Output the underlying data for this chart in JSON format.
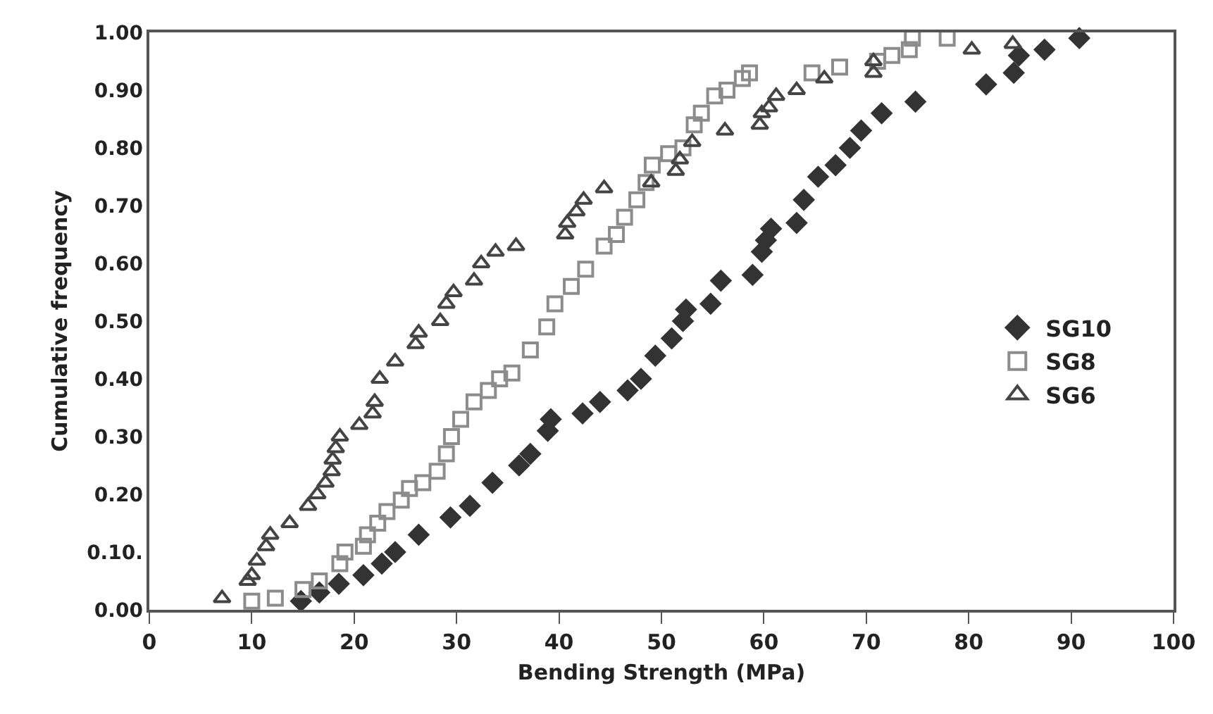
{
  "chart_data": {
    "type": "scatter",
    "xlabel": "Bending Strength (MPa)",
    "ylabel": "Cumulative frequency",
    "xlim": [
      0,
      100
    ],
    "xticks": [
      0,
      10,
      20,
      30,
      40,
      50,
      60,
      70,
      80,
      90,
      100
    ],
    "ylim": [
      0,
      1
    ],
    "yticks": [
      {
        "value": 0,
        "label": "0.00"
      },
      {
        "value": 0.1,
        "label": "0.10."
      },
      {
        "value": 0.2,
        "label": "0.20"
      },
      {
        "value": 0.3,
        "label": "0.30"
      },
      {
        "value": 0.4,
        "label": "0.40"
      },
      {
        "value": 0.5,
        "label": "0.50"
      },
      {
        "value": 0.6,
        "label": "0.60"
      },
      {
        "value": 0.7,
        "label": "0.70"
      },
      {
        "value": 0.8,
        "label": "0.80"
      },
      {
        "value": 0.9,
        "label": "0.90"
      },
      {
        "value": 1,
        "label": "1.00"
      }
    ],
    "legend": "right",
    "series": [
      {
        "name": "SG10",
        "color": "#333333",
        "marker": "diamond",
        "x": [
          14.8,
          16.6,
          18.5,
          20.9,
          22.7,
          24,
          26.3,
          29.4,
          31.3,
          33.5,
          36.1,
          37.2,
          38.9,
          39.2,
          42.3,
          44,
          46.7,
          48,
          49.4,
          51,
          52.1,
          52.4,
          54.8,
          55.8,
          58.9,
          59.8,
          60.2,
          60.7,
          63.2,
          63.9,
          65.3,
          67,
          68.4,
          69.5,
          71.5,
          74.8,
          81.7,
          84.4,
          84.9,
          87.4,
          90.8
        ],
        "values": [
          0.015,
          0.03,
          0.045,
          0.06,
          0.08,
          0.1,
          0.13,
          0.16,
          0.18,
          0.22,
          0.25,
          0.27,
          0.31,
          0.33,
          0.34,
          0.36,
          0.38,
          0.4,
          0.44,
          0.47,
          0.5,
          0.52,
          0.53,
          0.57,
          0.58,
          0.62,
          0.64,
          0.66,
          0.67,
          0.71,
          0.75,
          0.77,
          0.8,
          0.83,
          0.86,
          0.88,
          0.91,
          0.93,
          0.96,
          0.97,
          0.99
        ]
      },
      {
        "name": "SG8",
        "color": "#8c8c8c",
        "marker": "square",
        "x": [
          10,
          12.3,
          15,
          16.6,
          18.6,
          19.1,
          20.9,
          21.3,
          22.3,
          23.2,
          24.6,
          25.4,
          26.7,
          28.1,
          29,
          29.5,
          30.4,
          31.7,
          33.1,
          34.2,
          35.4,
          37.2,
          38.8,
          39.6,
          41.2,
          42.6,
          44.4,
          45.6,
          46.4,
          47.6,
          48.5,
          49.1,
          50.7,
          52.1,
          53.2,
          53.9,
          55.2,
          56.4,
          57.9,
          58.6,
          64.7,
          67.4,
          71.1,
          72.5,
          74.2,
          74.5,
          77.9
        ],
        "values": [
          0.015,
          0.02,
          0.035,
          0.05,
          0.08,
          0.1,
          0.11,
          0.13,
          0.15,
          0.17,
          0.19,
          0.21,
          0.22,
          0.24,
          0.27,
          0.3,
          0.33,
          0.36,
          0.38,
          0.4,
          0.41,
          0.45,
          0.49,
          0.53,
          0.56,
          0.59,
          0.63,
          0.65,
          0.68,
          0.71,
          0.74,
          0.77,
          0.79,
          0.8,
          0.84,
          0.86,
          0.89,
          0.9,
          0.92,
          0.93,
          0.93,
          0.94,
          0.95,
          0.96,
          0.97,
          0.99,
          0.99
        ]
      },
      {
        "name": "SG6",
        "color": "#444444",
        "marker": "triangle",
        "x": [
          7.1,
          9.6,
          10,
          10.5,
          11.4,
          11.8,
          13.7,
          15.5,
          16.4,
          17.2,
          17.8,
          17.9,
          18.2,
          18.6,
          20.5,
          21.8,
          22,
          22.5,
          24,
          26,
          26.3,
          28.4,
          29,
          29.7,
          31.7,
          32.4,
          33.8,
          35.8,
          40.6,
          40.8,
          41.7,
          42.4,
          44.4,
          49,
          51.4,
          51.8,
          53,
          56.2,
          59.6,
          59.8,
          60.5,
          61.2,
          63.2,
          65.9,
          70.7,
          70.7,
          80.3,
          84.3
        ],
        "values": [
          0.02,
          0.05,
          0.06,
          0.085,
          0.11,
          0.13,
          0.15,
          0.18,
          0.2,
          0.22,
          0.24,
          0.26,
          0.28,
          0.3,
          0.32,
          0.34,
          0.36,
          0.4,
          0.43,
          0.46,
          0.48,
          0.5,
          0.53,
          0.55,
          0.57,
          0.6,
          0.62,
          0.63,
          0.65,
          0.67,
          0.69,
          0.71,
          0.73,
          0.74,
          0.76,
          0.78,
          0.81,
          0.83,
          0.84,
          0.86,
          0.87,
          0.89,
          0.9,
          0.92,
          0.93,
          0.95,
          0.97,
          0.98
        ]
      }
    ]
  }
}
